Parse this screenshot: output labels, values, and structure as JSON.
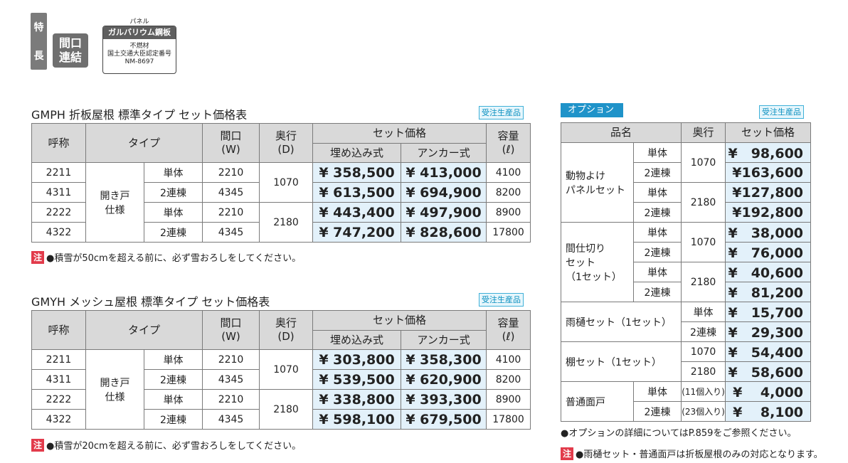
{
  "features": {
    "tokucho": [
      "特",
      "長"
    ],
    "maguchi": [
      "間口",
      "連結"
    ],
    "panel_label": "パネル",
    "panel_title": "ガルバリウム鋼板",
    "panel_lines": [
      "不燃材",
      "国土交通大臣認定番号",
      "NM-8697"
    ]
  },
  "badge": "受注生産品",
  "gmph": {
    "title": "GMPH 折板屋根 標準タイプ セット価格表",
    "headers": {
      "name": "呼称",
      "type": "タイプ",
      "width": "間口",
      "width_sub": "(W)",
      "depth": "奥行",
      "depth_sub": "(D)",
      "set_price": "セット価格",
      "embed": "埋め込み式",
      "anchor": "アンカー式",
      "capacity": "容量",
      "capacity_sub": "(ℓ)"
    },
    "type_label": [
      "開き戸",
      "仕様"
    ],
    "rows": [
      {
        "name": "2211",
        "sub": "単体",
        "width": "2210",
        "depth": "1070",
        "embed": "¥ 358,500",
        "anchor": "¥ 413,000",
        "cap": "4100"
      },
      {
        "name": "4311",
        "sub": "2連棟",
        "width": "4345",
        "depth": "",
        "embed": "¥ 613,500",
        "anchor": "¥ 694,900",
        "cap": "8200"
      },
      {
        "name": "2222",
        "sub": "単体",
        "width": "2210",
        "depth": "2180",
        "embed": "¥ 443,400",
        "anchor": "¥ 497,900",
        "cap": "8900"
      },
      {
        "name": "4322",
        "sub": "2連棟",
        "width": "4345",
        "depth": "",
        "embed": "¥ 747,200",
        "anchor": "¥ 828,600",
        "cap": "17800"
      }
    ],
    "note_mark": "注",
    "note": "●積雪が50cmを超える前に、必ず雪おろしをしてください。"
  },
  "gmyh": {
    "title": "GMYH メッシュ屋根 標準タイプ セット価格表",
    "type_label": [
      "開き戸",
      "仕様"
    ],
    "rows": [
      {
        "name": "2211",
        "sub": "単体",
        "width": "2210",
        "depth": "1070",
        "embed": "¥ 303,800",
        "anchor": "¥ 358,300",
        "cap": "4100"
      },
      {
        "name": "4311",
        "sub": "2連棟",
        "width": "4345",
        "depth": "",
        "embed": "¥ 539,500",
        "anchor": "¥ 620,900",
        "cap": "8200"
      },
      {
        "name": "2222",
        "sub": "単体",
        "width": "2210",
        "depth": "2180",
        "embed": "¥ 338,800",
        "anchor": "¥ 393,300",
        "cap": "8900"
      },
      {
        "name": "4322",
        "sub": "2連棟",
        "width": "4345",
        "depth": "",
        "embed": "¥ 598,100",
        "anchor": "¥ 679,500",
        "cap": "17800"
      }
    ],
    "note_mark": "注",
    "note": "●積雪が20cmを超える前に、必ず雪おろしをしてください。"
  },
  "options": {
    "title": "オプション",
    "headers": {
      "name": "品名",
      "depth": "奥行",
      "price": "セット価格"
    },
    "animal_name": [
      "動物よけ",
      "パネルセット"
    ],
    "partition_name": [
      "間仕切り",
      "セット",
      "（1セット）"
    ],
    "gutter_name": "雨樋セット（1セット）",
    "shelf_name": "棚セット（1セット）",
    "door_name": "普通面戸",
    "single": "単体",
    "double": "2連棟",
    "d1070": "1070",
    "d2180": "2180",
    "prices": {
      "animal": [
        "¥　98,600",
        "¥163,600",
        "¥127,800",
        "¥192,800"
      ],
      "partition": [
        "¥　38,000",
        "¥　76,000",
        "¥　40,600",
        "¥　81,200"
      ],
      "gutter": [
        "¥　15,700",
        "¥　29,300"
      ],
      "shelf": [
        "¥　54,400",
        "¥　58,600"
      ],
      "door": [
        "¥　 4,000",
        "¥　 8,100"
      ]
    },
    "door_qty": [
      "(11個入り)",
      "(23個入り)"
    ],
    "note1": "●オプションの詳細についてはP.859をご参照ください。",
    "note_mark": "注",
    "note2": "●雨樋セット・普通面戸は折板屋根のみの対応となります。"
  }
}
